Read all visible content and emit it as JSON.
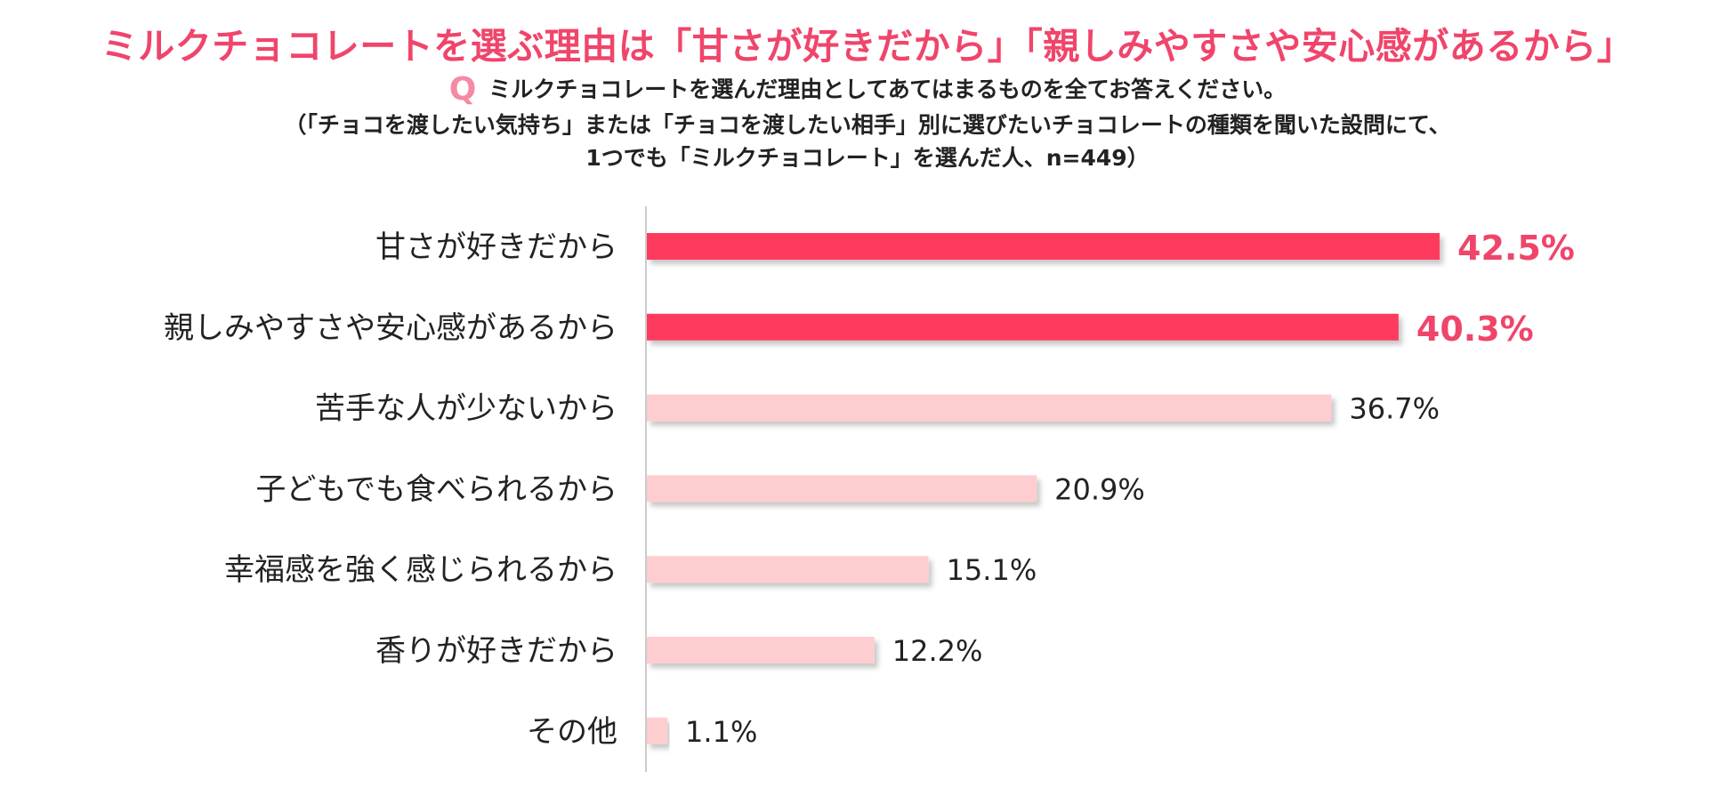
{
  "header": {
    "title": "ミルクチョコレートを選ぶ理由は「甘さが好きだから」「親しみやすさや安心感があるから」",
    "q_mark": "Q",
    "question": "ミルクチョコレートを選んだ理由としてあてはまるものを全てお答えください。",
    "note_line1": "（「チョコを渡したい気持ち」または「チョコを渡したい相手」別に選びたいチョコレートの種類を聞いた設問にて、",
    "note_line2": "1つでも「ミルクチョコレート」を選んだ人、n=449）"
  },
  "colors": {
    "title": "#f0456b",
    "highlight_bar": "#fe3a5f",
    "normal_bar": "#fecdd0",
    "highlight_label": "#f0456b",
    "normal_label": "#222222",
    "axis": "#cccccc"
  },
  "chart_data": {
    "type": "bar",
    "orientation": "horizontal",
    "categories": [
      "甘さが好きだから",
      "親しみやすさや安心感があるから",
      "苦手な人が少ないから",
      "子どもでも食べられるから",
      "幸福感を強く感じられるから",
      "香りが好きだから",
      "その他"
    ],
    "values": [
      42.5,
      40.3,
      36.7,
      20.9,
      15.1,
      12.2,
      1.1
    ],
    "value_labels": [
      "42.5%",
      "40.3%",
      "36.7%",
      "20.9%",
      "15.1%",
      "12.2%",
      "1.1%"
    ],
    "highlighted": [
      true,
      true,
      false,
      false,
      false,
      false,
      false
    ],
    "unit": "%",
    "xlim": [
      0,
      50
    ],
    "grid": false,
    "legend": "none"
  }
}
